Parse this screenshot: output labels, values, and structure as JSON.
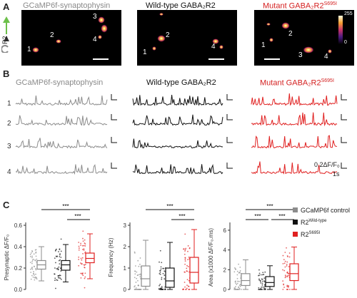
{
  "panel_A": {
    "label": "A",
    "titles": [
      "GCaMP6f-synaptophysin",
      "Wild-type GABA₂R2",
      "Mutant GABA₂R2"
    ],
    "title_sup": "S695I",
    "colorbar": {
      "min": "0",
      "max": "255"
    },
    "side_label": "R2",
    "images": [
      {
        "rois": [
          "1",
          "2",
          "3",
          "4"
        ]
      },
      {
        "rois": [
          "1",
          "2",
          "4"
        ]
      },
      {
        "rois": [
          "1",
          "2",
          "3",
          "4"
        ]
      }
    ]
  },
  "panel_B": {
    "label": "B",
    "titles": [
      "GCaMP6f-synaptophysin",
      "Wild-type GABA₂R2",
      "Mutant GABA₂R2"
    ],
    "title_sup": "S695I",
    "row_labels": [
      "1",
      "2",
      "3",
      "4"
    ],
    "scale_amp": "0.2ΔF/F₀",
    "scale_time": "1s",
    "colors": {
      "gcamp": "#8c8c8c",
      "wt": "#111111",
      "mutant": "#e02020"
    }
  },
  "panel_C": {
    "label": "C",
    "sig": "***",
    "legend": [
      {
        "label": "GCaMP6f control",
        "color": "#8c8c8c"
      },
      {
        "label": "R2",
        "sup": "Wild-type",
        "color": "#111111"
      },
      {
        "label": "R2",
        "sup": "S695I",
        "color": "#e02020"
      }
    ],
    "plots": [
      {
        "ylabel": "Presynaptic ΔF/F₀",
        "yticks": [
          "0.0",
          "0.2",
          "0.4",
          "0.6"
        ],
        "ymax": 0.6,
        "boxes": [
          {
            "q1": 0.19,
            "med": 0.23,
            "q3": 0.27,
            "lo": 0.08,
            "hi": 0.4
          },
          {
            "q1": 0.18,
            "med": 0.23,
            "q3": 0.27,
            "lo": 0.07,
            "hi": 0.42
          },
          {
            "q1": 0.25,
            "med": 0.29,
            "q3": 0.34,
            "lo": 0.1,
            "hi": 0.52
          }
        ]
      },
      {
        "ylabel": "Frequency (Hz)",
        "yticks": [
          "0",
          "1",
          "2",
          "3"
        ],
        "ymax": 3,
        "boxes": [
          {
            "q1": 0.15,
            "med": 0.5,
            "q3": 1.1,
            "lo": 0.0,
            "hi": 2.3
          },
          {
            "q1": 0.1,
            "med": 0.4,
            "q3": 1.0,
            "lo": 0.0,
            "hi": 2.2
          },
          {
            "q1": 0.3,
            "med": 0.8,
            "q3": 1.5,
            "lo": 0.0,
            "hi": 2.8
          }
        ]
      },
      {
        "ylabel": "Area (x1000 ΔF/F₀.ms)",
        "yticks": [
          "0",
          "2",
          "4",
          "6"
        ],
        "ymax": 6.5,
        "boxes": [
          {
            "q1": 0.4,
            "med": 0.9,
            "q3": 1.6,
            "lo": 0.0,
            "hi": 3.0
          },
          {
            "q1": 0.3,
            "med": 0.7,
            "q3": 1.3,
            "lo": 0.0,
            "hi": 2.4
          },
          {
            "q1": 0.9,
            "med": 1.6,
            "q3": 2.6,
            "lo": 0.0,
            "hi": 4.3
          }
        ]
      }
    ]
  }
}
